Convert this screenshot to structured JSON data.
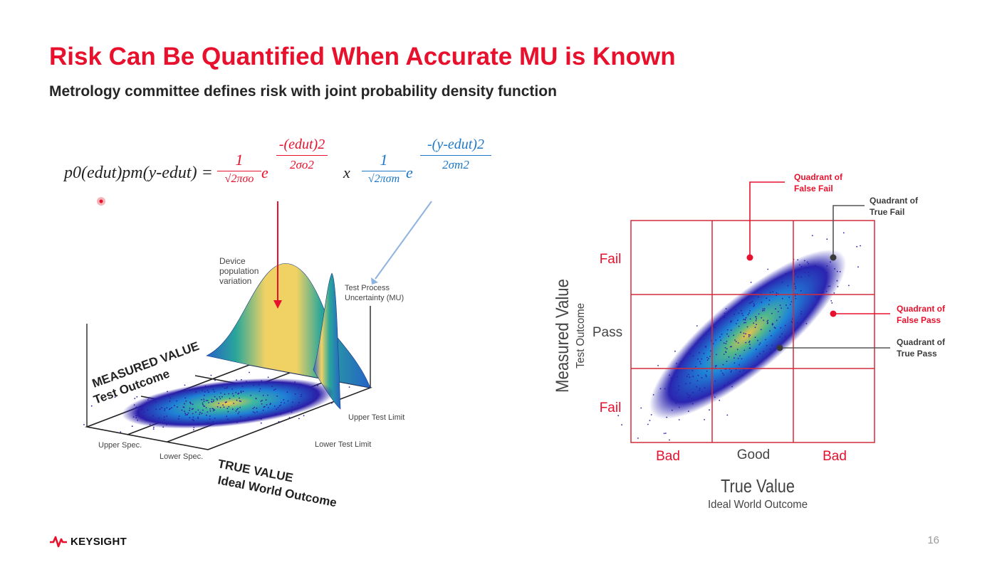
{
  "slide": {
    "title": "Risk Can Be Quantified When Accurate MU is Known",
    "subtitle": "Metrology committee defines risk with joint probability density function",
    "page_number": "16",
    "logo_text": "KEYSIGHT"
  },
  "equation": {
    "lhs": "p0(edut)pm(y-edut) =",
    "term1_coef_num": "1",
    "term1_coef_den": "√2πσo",
    "term1_base": "e",
    "term1_exp_num": "-(edut)2",
    "term1_exp_den": "2σo2",
    "times": "x",
    "term2_coef_num": "1",
    "term2_coef_den": "√2πσm",
    "term2_base": "e",
    "term2_exp_num": "-(y-edut)2",
    "term2_exp_den": "2σm2"
  },
  "left_figure": {
    "device_population_label": [
      "Device",
      "population",
      "variation"
    ],
    "test_process_label": [
      "Test Process",
      "Uncertainty (MU)"
    ],
    "measured_value_axis": "MEASURED VALUE",
    "test_outcome_axis": "Test Outcome",
    "true_value_axis": "TRUE VALUE",
    "ideal_world_axis": "Ideal World Outcome",
    "upper_spec": "Upper Spec.",
    "lower_spec": "Lower Spec.",
    "upper_test_limit": "Upper Test Limit",
    "lower_test_limit": "Lower Test Limit"
  },
  "right_figure": {
    "y_axis_title": "Measured Value",
    "y_axis_subtitle": "Test Outcome",
    "x_axis_title": "True Value",
    "x_axis_subtitle": "Ideal World Outcome",
    "row_labels": [
      "Fail",
      "Pass",
      "Fail"
    ],
    "col_labels": [
      "Bad",
      "Good",
      "Bad"
    ],
    "callouts": {
      "false_fail": [
        "Quadrant of",
        "False Fail"
      ],
      "true_fail": [
        "Quadrant of",
        "True Fail"
      ],
      "false_pass": [
        "Quadrant of",
        "False Pass"
      ],
      "true_pass": [
        "Quadrant of",
        "True Pass"
      ]
    }
  },
  "colors": {
    "accent_red": "#e8112d",
    "mu_blue": "#1e78c8",
    "grid_red": "#d22b3a",
    "density_low": "#2a1ea8",
    "density_mid": "#1f9ad6",
    "density_high": "#f2c94c"
  }
}
